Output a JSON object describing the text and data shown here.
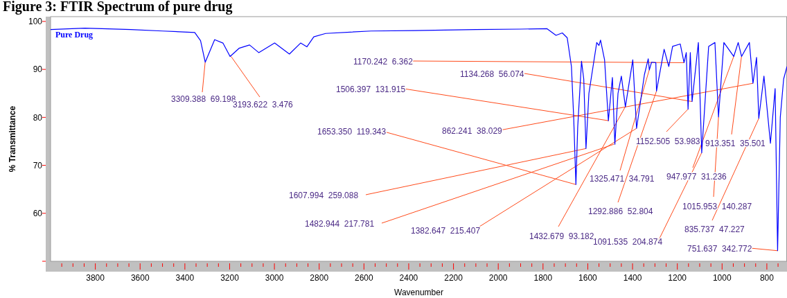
{
  "chart_data": {
    "type": "line",
    "title": "Figure 3: FTIR Spectrum of pure drug",
    "xlabel": "Wavenumber",
    "ylabel": "% Transmittance",
    "legend": "top left",
    "marker": "none",
    "line_style": "solid",
    "grid": false,
    "xlim": [
      4000,
      710
    ],
    "ylim": [
      50,
      101
    ],
    "xticks": [
      {
        "value": 3950,
        "label": null
      },
      {
        "value": 3900,
        "label": null
      },
      {
        "value": 3850,
        "label": null
      },
      3800,
      {
        "value": 3750,
        "label": null
      },
      {
        "value": 3700,
        "label": null
      },
      {
        "value": 3650,
        "label": null
      },
      3600,
      {
        "value": 3550,
        "label": null
      },
      {
        "value": 3500,
        "label": null
      },
      {
        "value": 3450,
        "label": null
      },
      3400,
      {
        "value": 3350,
        "label": null
      },
      {
        "value": 3300,
        "label": null
      },
      {
        "value": 3250,
        "label": null
      },
      3200,
      {
        "value": 3150,
        "label": null
      },
      {
        "value": 3100,
        "label": null
      },
      {
        "value": 3050,
        "label": null
      },
      3000,
      {
        "value": 2950,
        "label": null
      },
      {
        "value": 2900,
        "label": null
      },
      {
        "value": 2850,
        "label": null
      },
      2800,
      {
        "value": 2750,
        "label": null
      },
      {
        "value": 2700,
        "label": null
      },
      {
        "value": 2650,
        "label": null
      },
      2600,
      {
        "value": 2550,
        "label": null
      },
      {
        "value": 2500,
        "label": null
      },
      {
        "value": 2450,
        "label": null
      },
      2400,
      {
        "value": 2350,
        "label": null
      },
      {
        "value": 2300,
        "label": null
      },
      {
        "value": 2250,
        "label": null
      },
      2200,
      {
        "value": 2150,
        "label": null
      },
      {
        "value": 2100,
        "label": null
      },
      {
        "value": 2050,
        "label": null
      },
      2000,
      {
        "value": 1950,
        "label": null
      },
      {
        "value": 1900,
        "label": null
      },
      {
        "value": 1850,
        "label": null
      },
      1800,
      {
        "value": 1750,
        "label": null
      },
      {
        "value": 1700,
        "label": null
      },
      {
        "value": 1650,
        "label": null
      },
      1600,
      {
        "value": 1550,
        "label": null
      },
      {
        "value": 1500,
        "label": null
      },
      {
        "value": 1450,
        "label": null
      },
      1400,
      {
        "value": 1350,
        "label": null
      },
      {
        "value": 1300,
        "label": null
      },
      {
        "value": 1250,
        "label": null
      },
      1200,
      {
        "value": 1150,
        "label": null
      },
      {
        "value": 1100,
        "label": null
      },
      {
        "value": 1050,
        "label": null
      },
      1000,
      {
        "value": 950,
        "label": null
      },
      {
        "value": 900,
        "label": null
      },
      {
        "value": 850,
        "label": null
      },
      800,
      {
        "value": 750,
        "label": null
      }
    ],
    "yticks": [
      {
        "value": 50,
        "label": null
      },
      60,
      70,
      80,
      90,
      100
    ],
    "series": [
      {
        "name": "Pure Drug",
        "color": "#0000ff",
        "x": [
          4000,
          3847,
          3642,
          3500,
          3356,
          3330,
          3309,
          3267,
          3230,
          3198,
          3158,
          3111,
          3070,
          2999,
          2933,
          2883,
          2855,
          2824,
          2771,
          2568,
          2378,
          2100,
          1900,
          1783,
          1742,
          1714,
          1692,
          1673,
          1663,
          1653,
          1645,
          1628,
          1618,
          1608,
          1595,
          1560,
          1550,
          1543,
          1525,
          1508,
          1490,
          1479,
          1465,
          1450,
          1432,
          1399,
          1382,
          1347,
          1330,
          1325,
          1315,
          1296,
          1293,
          1259,
          1238,
          1221,
          1187,
          1170,
          1160,
          1152,
          1142,
          1134,
          1106,
          1091,
          1060,
          1032,
          1016,
          992,
          948,
          928,
          913,
          878,
          862,
          846,
          836,
          813,
          784,
          763,
          752,
          740,
          725,
          710
        ],
        "values": [
          98.3,
          98.6,
          98.3,
          98.0,
          97.7,
          96.0,
          91.5,
          96.2,
          95.5,
          92.7,
          94.4,
          95.1,
          93.5,
          95.5,
          93.2,
          95.5,
          94.7,
          96.8,
          97.5,
          98.0,
          98.1,
          98.3,
          98.4,
          98.5,
          97.1,
          97.6,
          96.6,
          90.6,
          80.0,
          66.0,
          78.0,
          91.7,
          88.0,
          73.5,
          85.0,
          95.6,
          95.0,
          96.1,
          92.0,
          79.3,
          88.3,
          74.4,
          85.0,
          88.6,
          82.2,
          92.0,
          77.7,
          88.9,
          92.2,
          89.9,
          91.5,
          91.4,
          85.5,
          94.2,
          90.6,
          94.8,
          95.3,
          91.4,
          93.5,
          81.7,
          93.5,
          83.3,
          95.6,
          72.6,
          94.8,
          95.6,
          80.1,
          95.6,
          92.7,
          95.6,
          92.7,
          95.6,
          87.1,
          92.5,
          79.8,
          88.6,
          74.6,
          86.0,
          52.2,
          80.0,
          88.0,
          90.6
        ]
      }
    ],
    "annotations": [
      {
        "text": "3309.388  69.198",
        "x": 3309.388,
        "y": 91.5
      },
      {
        "text": "3193.622  3.476",
        "x": 3193.622,
        "y": 92.7
      },
      {
        "text": "1170.242  6.362",
        "x": 1170.242,
        "y": 91.4
      },
      {
        "text": "1134.268  56.074",
        "x": 1134.268,
        "y": 83.3
      },
      {
        "text": "1506.397  131.915",
        "x": 1506.397,
        "y": 79.3
      },
      {
        "text": "862.241  38.029",
        "x": 862.241,
        "y": 87.1
      },
      {
        "text": "1653.350  119.343",
        "x": 1653.35,
        "y": 66.0
      },
      {
        "text": "1152.505  53.983",
        "x": 1152.505,
        "y": 81.7
      },
      {
        "text": "913.351  35.501",
        "x": 913.351,
        "y": 92.7
      },
      {
        "text": "1325.471  34.791",
        "x": 1325.471,
        "y": 89.9
      },
      {
        "text": "947.977  31.236",
        "x": 947.977,
        "y": 92.7
      },
      {
        "text": "1607.994  259.088",
        "x": 1607.994,
        "y": 73.5
      },
      {
        "text": "1292.886  52.804",
        "x": 1292.886,
        "y": 85.5
      },
      {
        "text": "1015.953  140.287",
        "x": 1015.953,
        "y": 80.1
      },
      {
        "text": "835.737  47.227",
        "x": 835.737,
        "y": 79.8
      },
      {
        "text": "1482.944  217.781",
        "x": 1482.944,
        "y": 74.4
      },
      {
        "text": "1382.647  215.407",
        "x": 1382.647,
        "y": 77.7
      },
      {
        "text": "1432.679  93.182",
        "x": 1432.679,
        "y": 82.2
      },
      {
        "text": "1091.535  204.874",
        "x": 1091.535,
        "y": 72.6
      },
      {
        "text": "751.637  342.772",
        "x": 751.637,
        "y": 52.2
      }
    ]
  }
}
